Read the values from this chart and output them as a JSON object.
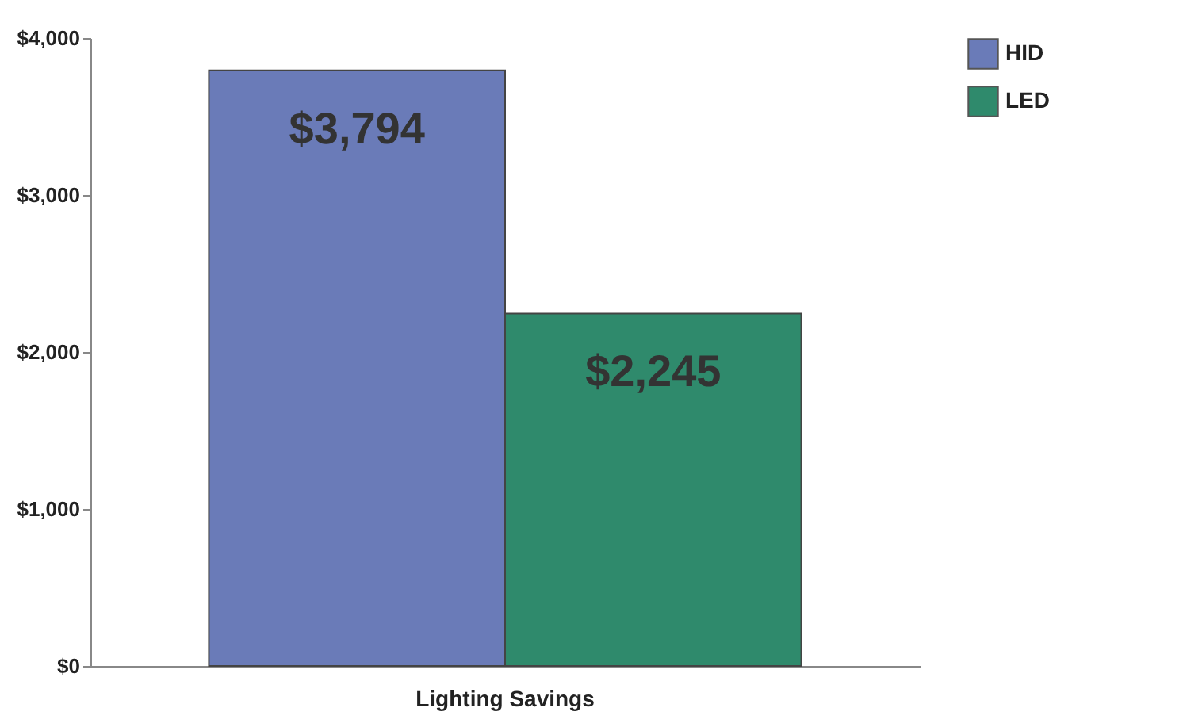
{
  "chart_data": {
    "type": "bar",
    "categories": [
      "Lighting Savings"
    ],
    "series": [
      {
        "name": "HID",
        "color": "#6a7bb8",
        "values": [
          3794
        ],
        "value_labels": [
          "$3,794"
        ]
      },
      {
        "name": "LED",
        "color": "#2f8a6c",
        "values": [
          2245
        ],
        "value_labels": [
          "$2,245"
        ]
      }
    ],
    "ylim": [
      0,
      4000
    ],
    "yticks": [
      {
        "value": 0,
        "label": "$0"
      },
      {
        "value": 1000,
        "label": "$1,000"
      },
      {
        "value": 2000,
        "label": "$2,000"
      },
      {
        "value": 3000,
        "label": "$3,000"
      },
      {
        "value": 4000,
        "label": "$4,000"
      }
    ],
    "grid": false,
    "legend": "right"
  }
}
